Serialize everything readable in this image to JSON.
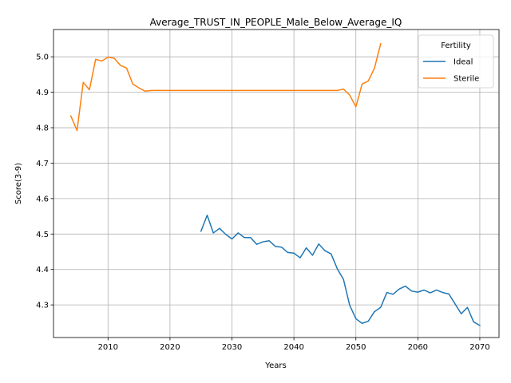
{
  "chart_data": {
    "type": "line",
    "title": "Average_TRUST_IN_PEOPLE_Male_Below_Average_IQ",
    "xlabel": "Years",
    "ylabel": "Score(3-9)",
    "xlim": [
      2001.2,
      2073.1
    ],
    "ylim": [
      4.208,
      5.077
    ],
    "xticks": [
      2010,
      2020,
      2030,
      2040,
      2050,
      2060,
      2070
    ],
    "yticks": [
      4.3,
      4.4,
      4.5,
      4.6,
      4.7,
      4.8,
      4.9,
      5.0
    ],
    "ytick_labels": [
      "4.3",
      "4.4",
      "4.5",
      "4.6",
      "4.7",
      "4.8",
      "4.9",
      "5.0"
    ],
    "grid": true,
    "legend": {
      "title": "Fertility",
      "placement": "top-right"
    },
    "series": [
      {
        "name": "Ideal",
        "color": "#1f77b4",
        "x": [
          2025,
          2026,
          2027,
          2028,
          2029,
          2030,
          2031,
          2032,
          2033,
          2034,
          2035,
          2036,
          2037,
          2038,
          2039,
          2040,
          2041,
          2042,
          2043,
          2044,
          2045,
          2046,
          2047,
          2048,
          2049,
          2050,
          2051,
          2052,
          2053,
          2054,
          2055,
          2056,
          2057,
          2058,
          2059,
          2060,
          2061,
          2062,
          2063,
          2064,
          2065,
          2066,
          2067,
          2068,
          2069,
          2070
        ],
        "y": [
          4.508,
          4.553,
          4.503,
          4.516,
          4.499,
          4.486,
          4.503,
          4.49,
          4.49,
          4.471,
          4.478,
          4.481,
          4.465,
          4.463,
          4.448,
          4.446,
          4.433,
          4.461,
          4.44,
          4.472,
          4.453,
          4.444,
          4.402,
          4.372,
          4.299,
          4.261,
          4.248,
          4.254,
          4.281,
          4.293,
          4.335,
          4.33,
          4.345,
          4.353,
          4.339,
          4.336,
          4.342,
          4.334,
          4.342,
          4.335,
          4.331,
          4.303,
          4.275,
          4.293,
          4.252,
          4.242
        ]
      },
      {
        "name": "Sterile",
        "color": "#ff7f0e",
        "x": [
          2004,
          2005,
          2006,
          2007,
          2008,
          2009,
          2010,
          2011,
          2012,
          2013,
          2014,
          2015,
          2016,
          2017,
          2018,
          2019,
          2020,
          2021,
          2022,
          2023,
          2024,
          2025,
          2026,
          2027,
          2028,
          2029,
          2030,
          2031,
          2032,
          2033,
          2034,
          2035,
          2036,
          2037,
          2038,
          2039,
          2040,
          2041,
          2042,
          2043,
          2044,
          2045,
          2046,
          2047,
          2048,
          2049,
          2050,
          2051,
          2052,
          2053,
          2054
        ],
        "y": [
          4.833,
          4.792,
          4.928,
          4.907,
          4.993,
          4.988,
          4.999,
          4.996,
          4.976,
          4.968,
          4.923,
          4.912,
          4.903,
          4.905,
          4.905,
          4.905,
          4.905,
          4.905,
          4.905,
          4.905,
          4.905,
          4.905,
          4.905,
          4.905,
          4.905,
          4.905,
          4.905,
          4.905,
          4.905,
          4.905,
          4.905,
          4.905,
          4.905,
          4.905,
          4.905,
          4.905,
          4.905,
          4.905,
          4.905,
          4.905,
          4.905,
          4.905,
          4.905,
          4.905,
          4.909,
          4.892,
          4.859,
          4.923,
          4.932,
          4.968,
          5.037
        ]
      }
    ]
  }
}
